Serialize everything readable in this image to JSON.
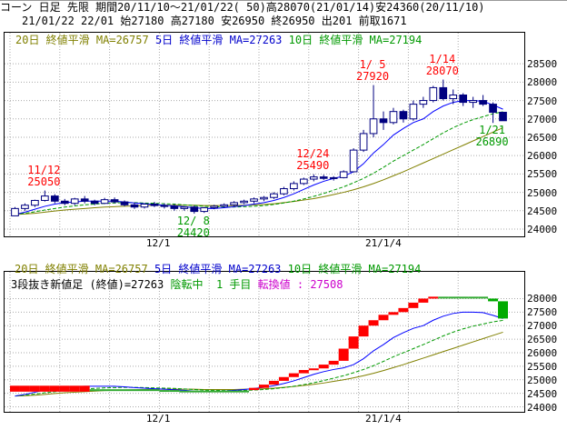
{
  "header": {
    "line1": "コーン 日足 先限 期間20/11/10～21/01/22( 50)高28070(21/01/14)安24360(20/11/10)",
    "line2": "21/01/22 22/01 始27180 高27180 安26950 終26950 出201 前取1671"
  },
  "ma_legend": {
    "ma20": "20日 終値平滑 MA=26757",
    "ma5": "5日 終値平滑 MA=27263",
    "ma10": "10日 終値平滑 MA=27194"
  },
  "reversal_legend": {
    "title": "3段抜き新値足 (終値)=27263",
    "state": "陰転中",
    "step": "1 手目",
    "value": "転換値 : 27508"
  },
  "annotations": [
    {
      "date": "11/12",
      "value": "25050",
      "color": "red"
    },
    {
      "date": "12/ 8",
      "value": "24420",
      "color": "green"
    },
    {
      "date": "12/24",
      "value": "25490",
      "color": "red"
    },
    {
      "date": "1/ 5",
      "value": "27920",
      "color": "red"
    },
    {
      "date": "1/14",
      "value": "28070",
      "color": "red"
    },
    {
      "date": "1/21",
      "value": "26890",
      "color": "green"
    }
  ],
  "x_ticks": [
    "12/1",
    "21/1/4"
  ],
  "chart_data": [
    {
      "type": "candlestick",
      "y_ticks": [
        24000,
        24500,
        25000,
        25500,
        26000,
        26500,
        27000,
        27500,
        28000,
        28500
      ],
      "ylim": [
        23950,
        28900
      ],
      "colors": {
        "up": "#ffffff",
        "down": "#000080",
        "ma5": "#0000ff",
        "ma10": "#009900",
        "ma20": "#808000"
      },
      "candles": [
        [
          24360,
          24600,
          24360,
          24560
        ],
        [
          24560,
          24700,
          24500,
          24650
        ],
        [
          24650,
          24800,
          24600,
          24780
        ],
        [
          24780,
          25050,
          24750,
          24900
        ],
        [
          24900,
          24950,
          24700,
          24760
        ],
        [
          24760,
          24820,
          24650,
          24700
        ],
        [
          24700,
          24850,
          24650,
          24820
        ],
        [
          24820,
          24900,
          24700,
          24760
        ],
        [
          24760,
          24800,
          24650,
          24700
        ],
        [
          24700,
          24850,
          24680,
          24800
        ],
        [
          24800,
          24860,
          24700,
          24740
        ],
        [
          24740,
          24780,
          24620,
          24660
        ],
        [
          24660,
          24720,
          24550,
          24600
        ],
        [
          24600,
          24700,
          24560,
          24680
        ],
        [
          24680,
          24740,
          24600,
          24640
        ],
        [
          24640,
          24700,
          24560,
          24620
        ],
        [
          24620,
          24680,
          24500,
          24560
        ],
        [
          24560,
          24620,
          24500,
          24600
        ],
        [
          24600,
          24640,
          24420,
          24480
        ],
        [
          24480,
          24600,
          24440,
          24580
        ],
        [
          24580,
          24660,
          24540,
          24620
        ],
        [
          24620,
          24700,
          24580,
          24660
        ],
        [
          24660,
          24760,
          24620,
          24720
        ],
        [
          24720,
          24800,
          24680,
          24760
        ],
        [
          24760,
          24860,
          24700,
          24820
        ],
        [
          24820,
          24900,
          24760,
          24860
        ],
        [
          24860,
          25000,
          24820,
          24960
        ],
        [
          24960,
          25150,
          24920,
          25100
        ],
        [
          25100,
          25300,
          25050,
          25240
        ],
        [
          25240,
          25400,
          25200,
          25360
        ],
        [
          25360,
          25490,
          25300,
          25420
        ],
        [
          25420,
          25480,
          25340,
          25380
        ],
        [
          25380,
          25440,
          25320,
          25400
        ],
        [
          25400,
          25600,
          25380,
          25560
        ],
        [
          25560,
          26200,
          25540,
          26150
        ],
        [
          26150,
          26700,
          26100,
          26600
        ],
        [
          26600,
          27920,
          26500,
          27000
        ],
        [
          27000,
          27200,
          26700,
          26900
        ],
        [
          26900,
          27300,
          26850,
          27200
        ],
        [
          27200,
          27250,
          26900,
          27000
        ],
        [
          27000,
          27500,
          26950,
          27400
        ],
        [
          27400,
          27600,
          27300,
          27500
        ],
        [
          27500,
          27900,
          27450,
          27850
        ],
        [
          27850,
          28070,
          27500,
          27550
        ],
        [
          27550,
          27800,
          27400,
          27650
        ],
        [
          27650,
          27700,
          27350,
          27450
        ],
        [
          27450,
          27600,
          27300,
          27500
        ],
        [
          27500,
          27650,
          27350,
          27400
        ],
        [
          27400,
          27450,
          26890,
          27180
        ],
        [
          27180,
          27180,
          26950,
          26950
        ]
      ],
      "ma5": [
        24400,
        24460,
        24540,
        24620,
        24680,
        24720,
        24740,
        24760,
        24760,
        24760,
        24760,
        24740,
        24710,
        24690,
        24670,
        24650,
        24630,
        24610,
        24580,
        24560,
        24560,
        24580,
        24610,
        24640,
        24680,
        24720,
        24780,
        24860,
        24960,
        25080,
        25200,
        25300,
        25380,
        25440,
        25560,
        25780,
        26070,
        26300,
        26560,
        26740,
        26900,
        27000,
        27200,
        27350,
        27450,
        27500,
        27500,
        27480,
        27380,
        27263
      ],
      "ma10": [
        24400,
        24430,
        24470,
        24520,
        24560,
        24600,
        24630,
        24660,
        24680,
        24700,
        24710,
        24720,
        24720,
        24710,
        24700,
        24690,
        24680,
        24660,
        24640,
        24620,
        24610,
        24600,
        24600,
        24610,
        24620,
        24640,
        24670,
        24710,
        24760,
        24820,
        24890,
        24970,
        25060,
        25150,
        25260,
        25380,
        25520,
        25680,
        25850,
        26000,
        26150,
        26300,
        26460,
        26620,
        26760,
        26880,
        26980,
        27060,
        27140,
        27194
      ],
      "ma20": [
        24400,
        24410,
        24430,
        24460,
        24490,
        24520,
        24540,
        24560,
        24580,
        24600,
        24610,
        24620,
        24630,
        24640,
        24650,
        24650,
        24650,
        24650,
        24650,
        24640,
        24640,
        24640,
        24640,
        24650,
        24660,
        24670,
        24690,
        24720,
        24750,
        24790,
        24830,
        24880,
        24940,
        25000,
        25070,
        25150,
        25240,
        25340,
        25450,
        25560,
        25680,
        25800,
        25920,
        26040,
        26160,
        26280,
        26400,
        26520,
        26640,
        26757
      ]
    },
    {
      "type": "reversal_bars",
      "y_ticks": [
        24000,
        24500,
        25000,
        25500,
        26000,
        26500,
        27000,
        27500,
        28000
      ],
      "ylim": [
        23950,
        28250
      ],
      "colors": {
        "up": "#ff0000",
        "down": "#00aa00"
      },
      "bricks": [
        [
          24560,
          24780,
          "u"
        ],
        [
          24560,
          24780,
          "u"
        ],
        [
          24560,
          24780,
          "u"
        ],
        [
          24560,
          24780,
          "u"
        ],
        [
          24560,
          24780,
          "u"
        ],
        [
          24560,
          24780,
          "u"
        ],
        [
          24560,
          24780,
          "u"
        ],
        [
          24560,
          24780,
          "u"
        ],
        [
          24650,
          24650,
          "f"
        ],
        [
          24650,
          24650,
          "f"
        ],
        [
          24650,
          24650,
          "f"
        ],
        [
          24650,
          24650,
          "f"
        ],
        [
          24650,
          24650,
          "f"
        ],
        [
          24650,
          24650,
          "f"
        ],
        [
          24650,
          24650,
          "f"
        ],
        [
          24620,
          24620,
          "f"
        ],
        [
          24620,
          24620,
          "f"
        ],
        [
          24600,
          24600,
          "f"
        ],
        [
          24600,
          24600,
          "f"
        ],
        [
          24600,
          24600,
          "f"
        ],
        [
          24600,
          24600,
          "f"
        ],
        [
          24600,
          24600,
          "f"
        ],
        [
          24600,
          24600,
          "f"
        ],
        [
          24600,
          24600,
          "f"
        ],
        [
          24620,
          24700,
          "u"
        ],
        [
          24700,
          24820,
          "u"
        ],
        [
          24820,
          24960,
          "u"
        ],
        [
          24960,
          25100,
          "u"
        ],
        [
          25100,
          25240,
          "u"
        ],
        [
          25240,
          25360,
          "u"
        ],
        [
          25360,
          25420,
          "u"
        ],
        [
          25420,
          25560,
          "u"
        ],
        [
          25560,
          25700,
          "u"
        ],
        [
          25700,
          26150,
          "u"
        ],
        [
          26150,
          26600,
          "u"
        ],
        [
          26600,
          27000,
          "u"
        ],
        [
          27000,
          27200,
          "u"
        ],
        [
          27200,
          27400,
          "u"
        ],
        [
          27400,
          27500,
          "u"
        ],
        [
          27500,
          27650,
          "u"
        ],
        [
          27650,
          27850,
          "u"
        ],
        [
          27850,
          28000,
          "u"
        ],
        [
          28000,
          28070,
          "u"
        ],
        [
          28070,
          28070,
          "f"
        ],
        [
          28070,
          28070,
          "f"
        ],
        [
          28070,
          28070,
          "f"
        ],
        [
          28070,
          28070,
          "f"
        ],
        [
          28070,
          28070,
          "f"
        ],
        [
          28000,
          27900,
          "d"
        ],
        [
          27900,
          27263,
          "d"
        ]
      ],
      "ma5": [
        24400,
        24460,
        24540,
        24620,
        24680,
        24720,
        24740,
        24760,
        24760,
        24760,
        24760,
        24740,
        24710,
        24690,
        24670,
        24650,
        24630,
        24610,
        24580,
        24560,
        24560,
        24580,
        24610,
        24640,
        24680,
        24720,
        24780,
        24860,
        24960,
        25080,
        25200,
        25300,
        25380,
        25440,
        25560,
        25780,
        26070,
        26300,
        26560,
        26740,
        26900,
        27000,
        27200,
        27350,
        27450,
        27500,
        27500,
        27480,
        27380,
        27263
      ],
      "ma10": [
        24400,
        24430,
        24470,
        24520,
        24560,
        24600,
        24630,
        24660,
        24680,
        24700,
        24710,
        24720,
        24720,
        24710,
        24700,
        24690,
        24680,
        24660,
        24640,
        24620,
        24610,
        24600,
        24600,
        24610,
        24620,
        24640,
        24670,
        24710,
        24760,
        24820,
        24890,
        24970,
        25060,
        25150,
        25260,
        25380,
        25520,
        25680,
        25850,
        26000,
        26150,
        26300,
        26460,
        26620,
        26760,
        26880,
        26980,
        27060,
        27140,
        27194
      ],
      "ma20": [
        24400,
        24410,
        24430,
        24460,
        24490,
        24520,
        24540,
        24560,
        24580,
        24600,
        24610,
        24620,
        24630,
        24640,
        24650,
        24650,
        24650,
        24650,
        24650,
        24640,
        24640,
        24640,
        24640,
        24650,
        24660,
        24670,
        24690,
        24720,
        24750,
        24790,
        24830,
        24880,
        24940,
        25000,
        25070,
        25150,
        25240,
        25340,
        25450,
        25560,
        25680,
        25800,
        25920,
        26040,
        26160,
        26280,
        26400,
        26520,
        26640,
        26757
      ]
    }
  ]
}
